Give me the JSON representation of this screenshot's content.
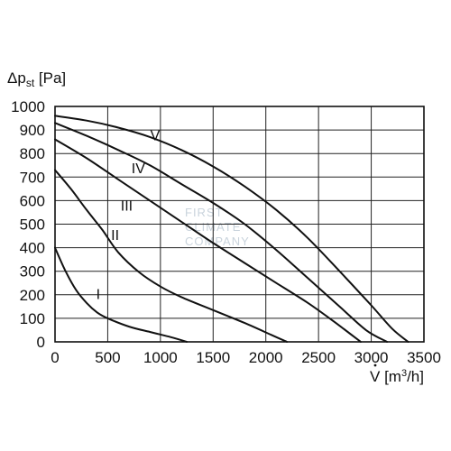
{
  "chart_data": {
    "type": "line",
    "ylabel_main": "Δp",
    "ylabel_sub": "st",
    "ylabel_unit": " [Pa]",
    "xlabel_main": "V",
    "xlabel_unit": " [m",
    "xlabel_sup": "3",
    "xlabel_tail": "/h]",
    "xlim": [
      0,
      3500
    ],
    "ylim": [
      0,
      1000
    ],
    "x_ticks": [
      "0",
      "500",
      "1000",
      "1500",
      "2000",
      "2500",
      "3000",
      "3500"
    ],
    "y_ticks": [
      "0",
      "100",
      "200",
      "300",
      "400",
      "500",
      "600",
      "700",
      "800",
      "900",
      "1000"
    ],
    "grid": true,
    "watermark": [
      "FIRST",
      "CLIMATE",
      "COMPANY"
    ],
    "series": [
      {
        "name": "I",
        "label_at": [
          410,
          205
        ],
        "points": [
          [
            0,
            400
          ],
          [
            100,
            300
          ],
          [
            200,
            220
          ],
          [
            300,
            165
          ],
          [
            400,
            125
          ],
          [
            500,
            100
          ],
          [
            700,
            65
          ],
          [
            900,
            42
          ],
          [
            1100,
            20
          ],
          [
            1250,
            0
          ]
        ]
      },
      {
        "name": "II",
        "label_at": [
          570,
          455
        ],
        "points": [
          [
            0,
            730
          ],
          [
            150,
            650
          ],
          [
            300,
            560
          ],
          [
            450,
            475
          ],
          [
            600,
            380
          ],
          [
            800,
            295
          ],
          [
            1000,
            235
          ],
          [
            1200,
            190
          ],
          [
            1500,
            135
          ],
          [
            1800,
            80
          ],
          [
            2050,
            30
          ],
          [
            2200,
            0
          ]
        ]
      },
      {
        "name": "III",
        "label_at": [
          680,
          580
        ],
        "points": [
          [
            0,
            860
          ],
          [
            300,
            780
          ],
          [
            600,
            690
          ],
          [
            900,
            600
          ],
          [
            1200,
            510
          ],
          [
            1500,
            420
          ],
          [
            1800,
            335
          ],
          [
            2100,
            250
          ],
          [
            2400,
            165
          ],
          [
            2650,
            85
          ],
          [
            2900,
            0
          ]
        ]
      },
      {
        "name": "IV",
        "label_at": [
          790,
          740
        ],
        "points": [
          [
            0,
            930
          ],
          [
            300,
            875
          ],
          [
            600,
            815
          ],
          [
            900,
            750
          ],
          [
            1200,
            670
          ],
          [
            1500,
            590
          ],
          [
            1800,
            500
          ],
          [
            2100,
            390
          ],
          [
            2400,
            270
          ],
          [
            2700,
            150
          ],
          [
            2950,
            50
          ],
          [
            3150,
            0
          ]
        ]
      },
      {
        "name": "V",
        "label_at": [
          950,
          880
        ],
        "points": [
          [
            0,
            960
          ],
          [
            300,
            940
          ],
          [
            600,
            910
          ],
          [
            900,
            870
          ],
          [
            1200,
            815
          ],
          [
            1500,
            745
          ],
          [
            1800,
            660
          ],
          [
            2100,
            560
          ],
          [
            2400,
            440
          ],
          [
            2700,
            300
          ],
          [
            3000,
            155
          ],
          [
            3200,
            55
          ],
          [
            3350,
            0
          ]
        ]
      }
    ]
  }
}
